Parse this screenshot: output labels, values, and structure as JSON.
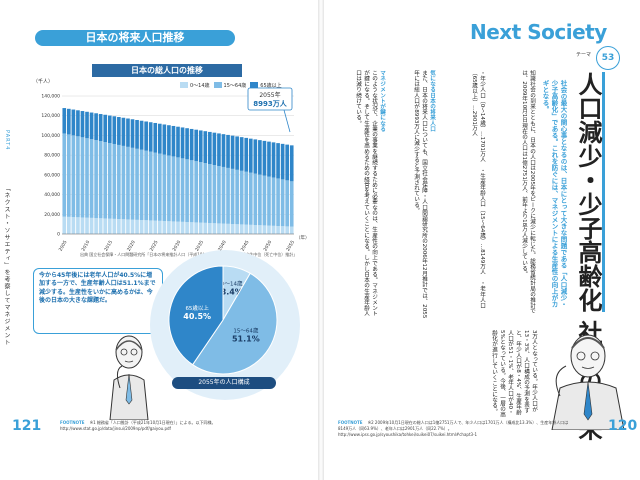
{
  "left_page": {
    "section_title": "日本の将来人口推移",
    "side_tab": "PART4",
    "side_title": "「ネクスト・ソサエティ」を考察してマネジメント",
    "chart_title": "日本の総人口の推移",
    "callout": "今から45年後には老年人口が40.5%に増加する一方で、生産年齢人口は51.1%まで減少する。生産性をいかに高めるかは、今後の日本の大きな課題だ。",
    "source": "出典 国立社会保障・人口問題研究所「日本の将来推計人口（平成18年12月推計）」より。「出生中位（死亡中位）推計」",
    "pie_label": "2055年の人口構成",
    "page_number": "121",
    "footnote_tag": "FOOTNOTE",
    "footnote": "※1 総務省「人口推計（平成21年10月1日現在）」による。以下同様。\nhttp://www.stat.go.jp/data/jinsui/2009np/pdf/gaiyou.pdf"
  },
  "chart_data": [
    {
      "type": "bar",
      "stacked": true,
      "title": "日本の総人口の推移",
      "y_unit": "（千人）",
      "x_suffix": "（年）",
      "ylim": [
        0,
        140000
      ],
      "y_ticks": [
        0,
        20000,
        40000,
        60000,
        80000,
        100000,
        120000,
        140000
      ],
      "y_tick_labels": [
        "0",
        "20,000",
        "40,000",
        "60,000",
        "80,000",
        "100,000",
        "120,000",
        "140,000"
      ],
      "categories": [
        "2005",
        "2006",
        "2007",
        "2008",
        "2009",
        "2010",
        "2011",
        "2012",
        "2013",
        "2014",
        "2015",
        "2016",
        "2017",
        "2018",
        "2019",
        "2020",
        "2021",
        "2022",
        "2023",
        "2024",
        "2025",
        "2026",
        "2027",
        "2028",
        "2029",
        "2030",
        "2031",
        "2032",
        "2033",
        "2034",
        "2035",
        "2036",
        "2037",
        "2038",
        "2039",
        "2040",
        "2041",
        "2042",
        "2043",
        "2044",
        "2045",
        "2046",
        "2047",
        "2048",
        "2049",
        "2050",
        "2051",
        "2052",
        "2053",
        "2054",
        "2055"
      ],
      "x_tick_labels": [
        "2005",
        "2010",
        "2015",
        "2020",
        "2025",
        "2030",
        "2035",
        "2040",
        "2045",
        "2050",
        "2055"
      ],
      "legend_position": "top-right",
      "series": [
        {
          "name": "0〜14歳",
          "color": "#b9dcf3",
          "start": 17585,
          "end": 7516
        },
        {
          "name": "15〜64歳",
          "color": "#7fbce6",
          "start": 84422,
          "end": 45951
        },
        {
          "name": "65歳以上",
          "color": "#2f86c9",
          "start": 25761,
          "end": 36463
        }
      ],
      "annotation": {
        "year_label": "2055年",
        "value_label": "8993万人"
      }
    },
    {
      "type": "pie",
      "title": "2055年の人口構成",
      "slices": [
        {
          "label": "0〜14歳",
          "value": 8.4,
          "value_label": "8.4%",
          "color": "#b9dcf3"
        },
        {
          "label": "15〜64歳",
          "value": 51.1,
          "value_label": "51.1%",
          "color": "#7fbce6"
        },
        {
          "label": "65歳以上",
          "value": 40.5,
          "value_label": "40.5%",
          "color": "#2f86c9"
        }
      ]
    }
  ],
  "right_page": {
    "header": "Next Society",
    "theme_label": "テーマ",
    "theme_number": "53",
    "title_line1": "人口減少・少子高齢化",
    "title_line2": "社会の到来",
    "lead": "社会の最大の関心事となるのは、日本にとって大きな問題である「人口減少・少子高齢化」である。これを防ぐには、マネジメントによる生産性の向上がカギとなる。",
    "col1": "3万人となっている。年少人口が13・3%、人口構成の予測を表すと、年少人口が8・4%、生産年齢人口が51・1%、老年人口が40・5%となっている。今後、一層の高齢化が進行していくことになる。",
    "col2": "このような状況で、企業の事業を継続するために必要なのは、生産性の向上である。マネジメントが鍵になる。そして生産性を高めるための経営を考えていくことになる。しかし日本の生産年齢人口は減り続けている。",
    "subhead2": "マネジメントが鍵になる",
    "col3": "また、日本の将来人口についても、国立社会保障・人口問題研究所の2006年12月推計では、2055年には総人口が8993万人に減少すると予測されている。",
    "subhead3": "気になる日本の将来人口",
    "col4": "知識社会の到来とともに、日本の人口は2005年をピークに減少に転じた。総務省統計局の推計では、2009年10月1日現在の人口は1億2751万人、前年より18万人減少している。",
    "col5": "・年少人口（0〜14歳）…1701万人　・生産年齢人口（15〜64歳）…8149万人　・老年人口（65歳以上）…2901万人",
    "page_number": "120",
    "footnote_tag": "FOOTNOTE",
    "footnote": "※2 2009年10月1日現在の総人口は1億2751万人で、年少人口は1701万人（構成比13.3%）、生産年齢人口は8149万人（同63.9%）、老年人口は2901万人（同22.7%）。\nhttp://www.ipss.go.jp/syoushika/tohkei/suikei07/suikei.html#chapt3-1"
  }
}
